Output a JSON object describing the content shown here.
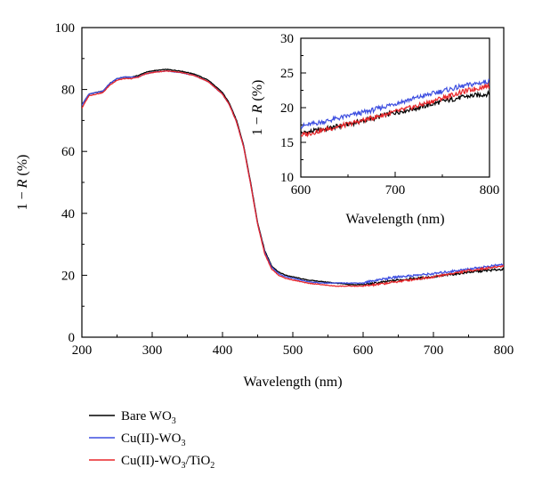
{
  "chart_data": [
    {
      "type": "line",
      "xlabel": "Wavelength (nm)",
      "ylabel": "1 − R (%)",
      "xlim": [
        200,
        800
      ],
      "ylim": [
        0,
        100
      ],
      "xticks": [
        "200",
        "300",
        "400",
        "500",
        "600",
        "700",
        "800"
      ],
      "yticks": [
        "0",
        "20",
        "40",
        "60",
        "80",
        "100"
      ],
      "grid": false,
      "legend_position": "bottom-left",
      "x": [
        200,
        210,
        220,
        230,
        240,
        250,
        260,
        270,
        280,
        290,
        300,
        320,
        340,
        360,
        380,
        400,
        410,
        420,
        430,
        440,
        450,
        460,
        470,
        480,
        490,
        500,
        520,
        540,
        560,
        580,
        600,
        620,
        650,
        700,
        750,
        800
      ],
      "series": [
        {
          "name": "Bare WO3",
          "sub": "3",
          "color": "#000000",
          "values": [
            75,
            78.5,
            79,
            79.5,
            82,
            83.5,
            84,
            84,
            84.5,
            85.5,
            86,
            86.5,
            86,
            85,
            83,
            79,
            75.5,
            70,
            62,
            50,
            37,
            28,
            23,
            21,
            20,
            19.5,
            18.5,
            18,
            17.5,
            17,
            17,
            17.5,
            18.5,
            19.5,
            21,
            22
          ]
        },
        {
          "name": "Cu(II)-WO3",
          "sub": "3",
          "color": "#3d4ee0",
          "values": [
            75,
            78.5,
            79,
            79.5,
            82,
            83.5,
            84,
            84,
            84,
            85,
            85.5,
            86,
            85.5,
            84.5,
            82.5,
            78.5,
            75,
            69.5,
            61.5,
            49.5,
            36.5,
            27.5,
            22.5,
            20.5,
            19.5,
            19,
            18,
            17.5,
            17.5,
            17.5,
            17.5,
            18.5,
            19.5,
            20.5,
            22,
            23.5
          ]
        },
        {
          "name": "Cu(II)-WO3/TiO2",
          "color": "#e8262a",
          "values": [
            74,
            78,
            78.5,
            79,
            81.5,
            83,
            83.5,
            83.5,
            84,
            85,
            85.5,
            86,
            85.5,
            84.5,
            82.5,
            78.5,
            75,
            69.5,
            61.5,
            49.5,
            36.5,
            27,
            22,
            20,
            19,
            18.5,
            17.5,
            17,
            16.5,
            16.5,
            16.5,
            17,
            18,
            19.5,
            21.5,
            23
          ]
        }
      ]
    },
    {
      "type": "line",
      "inset": true,
      "xlabel": "Wavelength (nm)",
      "ylabel": "1 − R (%)",
      "xlim": [
        600,
        800
      ],
      "ylim": [
        10,
        30
      ],
      "xticks": [
        "600",
        "700",
        "800"
      ],
      "yticks": [
        "10",
        "15",
        "20",
        "25",
        "30"
      ],
      "x": [
        600,
        625,
        650,
        675,
        700,
        725,
        750,
        775,
        800
      ],
      "series": [
        {
          "name": "Bare WO3",
          "color": "#000000",
          "values": [
            16.3,
            16.9,
            17.6,
            18.4,
            19.3,
            20.0,
            20.9,
            21.6,
            22.0
          ]
        },
        {
          "name": "Cu(II)-WO3",
          "color": "#3d4ee0",
          "values": [
            17.3,
            18.0,
            18.8,
            19.6,
            20.6,
            21.5,
            22.4,
            23.2,
            23.8
          ]
        },
        {
          "name": "Cu(II)-WO3/TiO2",
          "color": "#e8262a",
          "values": [
            16.0,
            16.8,
            17.6,
            18.5,
            19.4,
            20.3,
            21.4,
            22.4,
            23.2
          ]
        }
      ]
    }
  ],
  "legend": {
    "items": [
      {
        "base": "Bare WO",
        "sub": "3",
        "tail": "",
        "color": "#000000"
      },
      {
        "base": "Cu(II)-WO",
        "sub": "3",
        "tail": "",
        "color": "#3d4ee0"
      },
      {
        "base": "Cu(II)-WO",
        "sub": "3",
        "tail": "/TiO",
        "sub2": "2",
        "color": "#e8262a"
      }
    ]
  }
}
